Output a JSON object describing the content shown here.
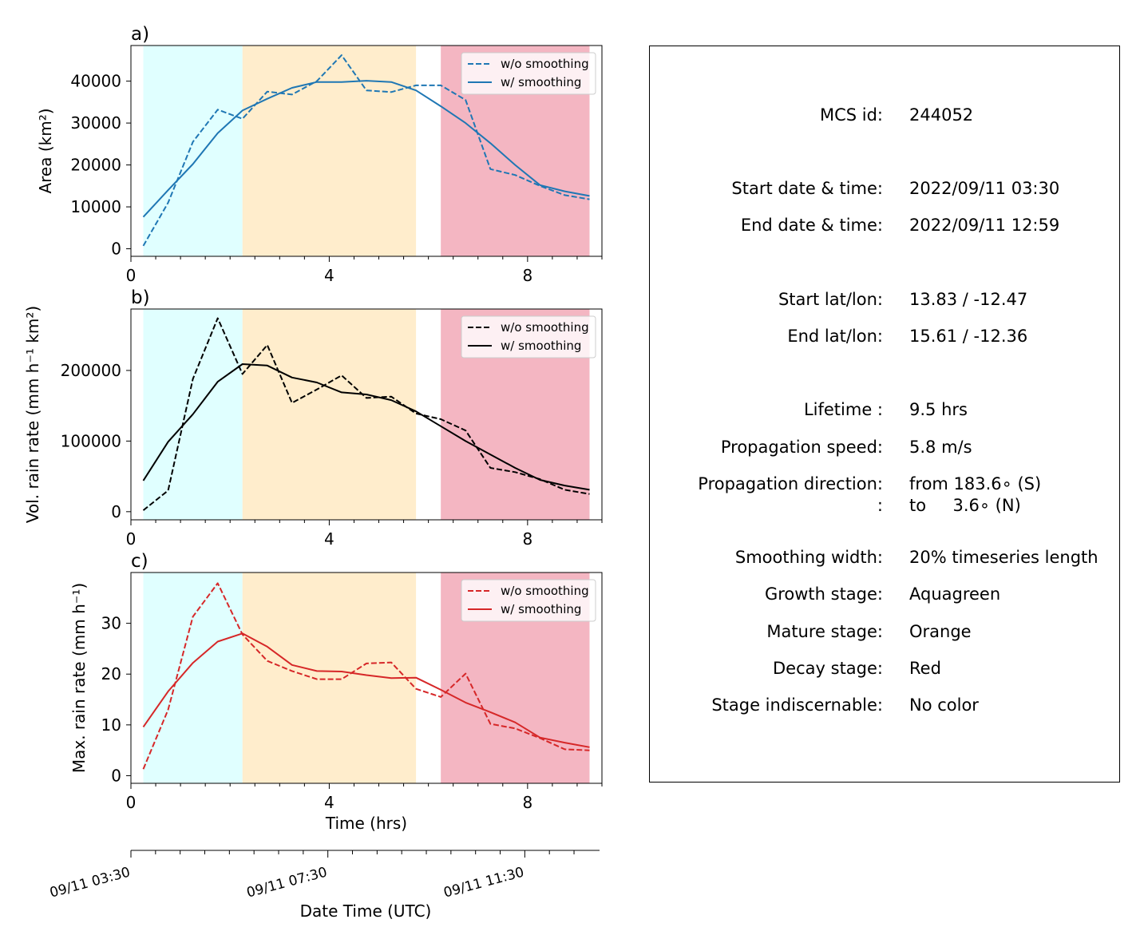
{
  "chart_data": [
    {
      "panel": "a)",
      "type": "line",
      "ylabel": "Area  (km²)",
      "xlim": [
        0,
        9.5
      ],
      "ylim": [
        -1800,
        48500
      ],
      "yticks": [
        0,
        10000,
        20000,
        30000,
        40000
      ],
      "xticks": [
        0,
        4,
        8
      ],
      "color": "#1f77b4",
      "stages": [
        {
          "name": "Growth stage",
          "color": "#e0ffff",
          "x0": 0.25,
          "x1": 2.25
        },
        {
          "name": "Mature stage",
          "color": "#ffedcc",
          "x0": 2.25,
          "x1": 5.75
        },
        {
          "name": "Decay stage",
          "color": "#f4b6c2",
          "x0": 6.25,
          "x1": 9.25
        }
      ],
      "legend": {
        "placement": "top-right"
      },
      "series": [
        {
          "name": "w/o smoothing",
          "style": "dashed",
          "x": [
            0.25,
            0.75,
            1.25,
            1.75,
            2.25,
            2.75,
            3.25,
            3.75,
            4.25,
            4.75,
            5.25,
            5.75,
            6.25,
            6.75,
            7.25,
            7.75,
            8.25,
            8.75,
            9.25
          ],
          "y": [
            700,
            11000,
            25500,
            33200,
            31000,
            37500,
            36800,
            40000,
            46200,
            37800,
            37400,
            39000,
            39000,
            35500,
            19000,
            17600,
            15000,
            12800,
            11800
          ]
        },
        {
          "name": "w/ smoothing",
          "style": "solid",
          "x": [
            0.25,
            0.75,
            1.25,
            1.75,
            2.25,
            2.75,
            3.25,
            3.75,
            4.25,
            4.75,
            5.25,
            5.75,
            6.25,
            6.75,
            7.25,
            7.75,
            8.25,
            8.75,
            9.25
          ],
          "y": [
            7600,
            14000,
            20200,
            27600,
            33000,
            35800,
            38400,
            39800,
            39800,
            40100,
            39800,
            37800,
            34000,
            30000,
            25200,
            20000,
            15200,
            13700,
            12600
          ]
        }
      ]
    },
    {
      "panel": "b)",
      "type": "line",
      "ylabel": "Vol. rain rate (mm h⁻¹ km²)",
      "xlim": [
        0,
        9.5
      ],
      "ylim": [
        -11500,
        287000
      ],
      "yticks": [
        0,
        100000,
        200000
      ],
      "xticks": [
        0,
        4,
        8
      ],
      "color": "#000000",
      "stages": [
        {
          "name": "Growth stage",
          "color": "#e0ffff",
          "x0": 0.25,
          "x1": 2.25
        },
        {
          "name": "Mature stage",
          "color": "#ffedcc",
          "x0": 2.25,
          "x1": 5.75
        },
        {
          "name": "Decay stage",
          "color": "#f4b6c2",
          "x0": 6.25,
          "x1": 9.25
        }
      ],
      "legend": {
        "placement": "top-right"
      },
      "series": [
        {
          "name": "w/o smoothing",
          "style": "dashed",
          "x": [
            0.25,
            0.75,
            1.25,
            1.75,
            2.25,
            2.75,
            3.25,
            3.75,
            4.25,
            4.75,
            5.25,
            5.75,
            6.25,
            6.75,
            7.25,
            7.75,
            8.25,
            8.75,
            9.25
          ],
          "y": [
            2000,
            30000,
            188000,
            274000,
            195000,
            236000,
            154000,
            173000,
            193000,
            161000,
            163000,
            139000,
            131000,
            115000,
            62000,
            56000,
            46000,
            31000,
            25000
          ]
        },
        {
          "name": "w/ smoothing",
          "style": "solid",
          "x": [
            0.25,
            0.75,
            1.25,
            1.75,
            2.25,
            2.75,
            3.25,
            3.75,
            4.25,
            4.75,
            5.25,
            5.75,
            6.25,
            6.75,
            7.25,
            7.75,
            8.25,
            8.75,
            9.25
          ],
          "y": [
            44000,
            99000,
            138000,
            184000,
            209000,
            207000,
            190000,
            183000,
            169000,
            166000,
            158000,
            142000,
            121000,
            100000,
            81000,
            62000,
            45000,
            37000,
            31000
          ]
        }
      ]
    },
    {
      "panel": "c)",
      "type": "line",
      "ylabel": "Max. rain rate  (mm h⁻¹)",
      "xlabel": "Time (hrs)",
      "xlim": [
        0,
        9.5
      ],
      "ylim": [
        -1.5,
        40
      ],
      "yticks": [
        0,
        10,
        20,
        30
      ],
      "xticks": [
        0,
        4,
        8
      ],
      "color": "#d62728",
      "stages": [
        {
          "name": "Growth stage",
          "color": "#e0ffff",
          "x0": 0.25,
          "x1": 2.25
        },
        {
          "name": "Mature stage",
          "color": "#ffedcc",
          "x0": 2.25,
          "x1": 5.75
        },
        {
          "name": "Decay stage",
          "color": "#f4b6c2",
          "x0": 6.25,
          "x1": 9.25
        }
      ],
      "legend": {
        "placement": "top-right"
      },
      "series": [
        {
          "name": "w/o smoothing",
          "style": "dashed",
          "x": [
            0.25,
            0.75,
            1.25,
            1.75,
            2.25,
            2.75,
            3.25,
            3.75,
            4.25,
            4.75,
            5.25,
            5.75,
            6.25,
            6.75,
            7.25,
            7.75,
            8.25,
            8.75,
            9.25
          ],
          "y": [
            1.3,
            13.0,
            31.3,
            37.9,
            27.8,
            22.6,
            20.6,
            19.0,
            19.0,
            22.1,
            22.3,
            17.1,
            15.5,
            20.1,
            10.2,
            9.3,
            7.4,
            5.2,
            5.0
          ]
        },
        {
          "name": "w/ smoothing",
          "style": "solid",
          "x": [
            0.25,
            0.75,
            1.25,
            1.75,
            2.25,
            2.75,
            3.25,
            3.75,
            4.25,
            4.75,
            5.25,
            5.75,
            6.25,
            6.75,
            7.25,
            7.75,
            8.25,
            8.75,
            9.25
          ],
          "y": [
            9.6,
            16.6,
            22.2,
            26.4,
            28.0,
            25.4,
            21.8,
            20.6,
            20.5,
            19.8,
            19.2,
            19.3,
            16.9,
            14.4,
            12.5,
            10.5,
            7.5,
            6.5,
            5.6
          ]
        }
      ]
    }
  ],
  "datetime_axis": {
    "label": "Date Time (UTC)",
    "xlim": [
      0,
      9.5
    ],
    "ticks": [
      {
        "x": 0,
        "label": "09/11 03:30"
      },
      {
        "x": 4,
        "label": "09/11 07:30"
      },
      {
        "x": 8,
        "label": "09/11 11:30"
      }
    ]
  },
  "info": {
    "rows": [
      {
        "label": "MCS id:",
        "value": "244052"
      },
      {
        "label": "Start date & time:",
        "value": "2022/09/11 03:30"
      },
      {
        "label": "End date & time:",
        "value": "2022/09/11 12:59"
      },
      {
        "label": "Start lat/lon:",
        "value": "13.83 / -12.47"
      },
      {
        "label": "End lat/lon:",
        "value": "15.61 / -12.36"
      },
      {
        "label": "Lifetime :",
        "value": "9.5 hrs"
      },
      {
        "label": "Propagation speed:",
        "value": "5.8 m/s"
      },
      {
        "label": "Propagation direction:",
        "value": "from 183.6∘ (S)"
      },
      {
        "label": ":",
        "value": "to     3.6∘ (N)"
      },
      {
        "label": "Smoothing width:",
        "value": "20% timeseries length"
      },
      {
        "label": "Growth stage:",
        "value": "Aquagreen"
      },
      {
        "label": "Mature stage:",
        "value": "Orange"
      },
      {
        "label": "Decay stage:",
        "value": "Red"
      },
      {
        "label": "Stage indiscernable:",
        "value": "No color"
      }
    ]
  }
}
